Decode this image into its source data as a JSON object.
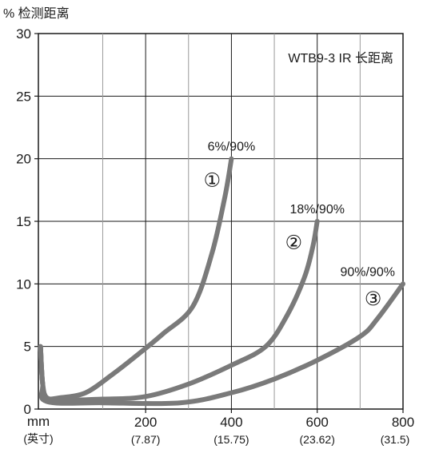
{
  "chart_data": {
    "type": "line",
    "title": "WTB9-3 IR 长距离",
    "ylabel": "% 检测距离",
    "xlabel": "mm",
    "xlabel_sub": "(英寸)",
    "xlim": [
      -50,
      800
    ],
    "ylim": [
      0,
      30
    ],
    "grid": true,
    "x_ticks": [
      {
        "value": 200,
        "label": "200",
        "sub": "(7.87)"
      },
      {
        "value": 400,
        "label": "400",
        "sub": "(15.75)"
      },
      {
        "value": 600,
        "label": "600",
        "sub": "(23.62)"
      },
      {
        "value": 800,
        "label": "800",
        "sub": "(31.5)"
      }
    ],
    "x_minor_ticks": [
      100,
      300,
      500,
      700
    ],
    "y_ticks": [
      {
        "value": 0,
        "label": "0"
      },
      {
        "value": 5,
        "label": "5"
      },
      {
        "value": 10,
        "label": "10"
      },
      {
        "value": 15,
        "label": "15"
      },
      {
        "value": 20,
        "label": "20"
      },
      {
        "value": 25,
        "label": "25"
      },
      {
        "value": 30,
        "label": "30"
      }
    ],
    "series": [
      {
        "name": "6%/90%",
        "marker": "①",
        "color": "#7a7a7a",
        "points": [
          [
            -45,
            5.0
          ],
          [
            -40,
            2.0
          ],
          [
            -30,
            0.9
          ],
          [
            0,
            0.9
          ],
          [
            60,
            1.3
          ],
          [
            120,
            2.7
          ],
          [
            180,
            4.3
          ],
          [
            240,
            6.0
          ],
          [
            310,
            8.2
          ],
          [
            355,
            12.5
          ],
          [
            385,
            17
          ],
          [
            400,
            20
          ]
        ]
      },
      {
        "name": "18%/90%",
        "marker": "②",
        "color": "#7a7a7a",
        "points": [
          [
            -45,
            5.0
          ],
          [
            -40,
            2.0
          ],
          [
            -30,
            0.8
          ],
          [
            100,
            0.8
          ],
          [
            200,
            1.0
          ],
          [
            300,
            2.0
          ],
          [
            400,
            3.5
          ],
          [
            480,
            5.0
          ],
          [
            530,
            7.5
          ],
          [
            570,
            10.5
          ],
          [
            590,
            13
          ],
          [
            600,
            15
          ]
        ]
      },
      {
        "name": "90%/90%",
        "marker": "③",
        "color": "#7a7a7a",
        "points": [
          [
            -45,
            5.0
          ],
          [
            -40,
            2.0
          ],
          [
            -30,
            0.6
          ],
          [
            100,
            0.5
          ],
          [
            280,
            0.5
          ],
          [
            400,
            1.3
          ],
          [
            500,
            2.4
          ],
          [
            600,
            3.9
          ],
          [
            700,
            5.8
          ],
          [
            740,
            7.2
          ],
          [
            800,
            10
          ]
        ]
      }
    ],
    "series_label_positions": [
      {
        "text": "6%/90%",
        "x": 400,
        "y": 20,
        "markerAt": [
          355,
          18.3
        ]
      },
      {
        "text": "18%/90%",
        "x": 600,
        "y": 15,
        "markerAt": [
          545,
          13.3
        ]
      },
      {
        "text": "90%/90%",
        "x": 800,
        "y": 10,
        "markerAt": [
          730,
          8.8
        ]
      }
    ]
  }
}
